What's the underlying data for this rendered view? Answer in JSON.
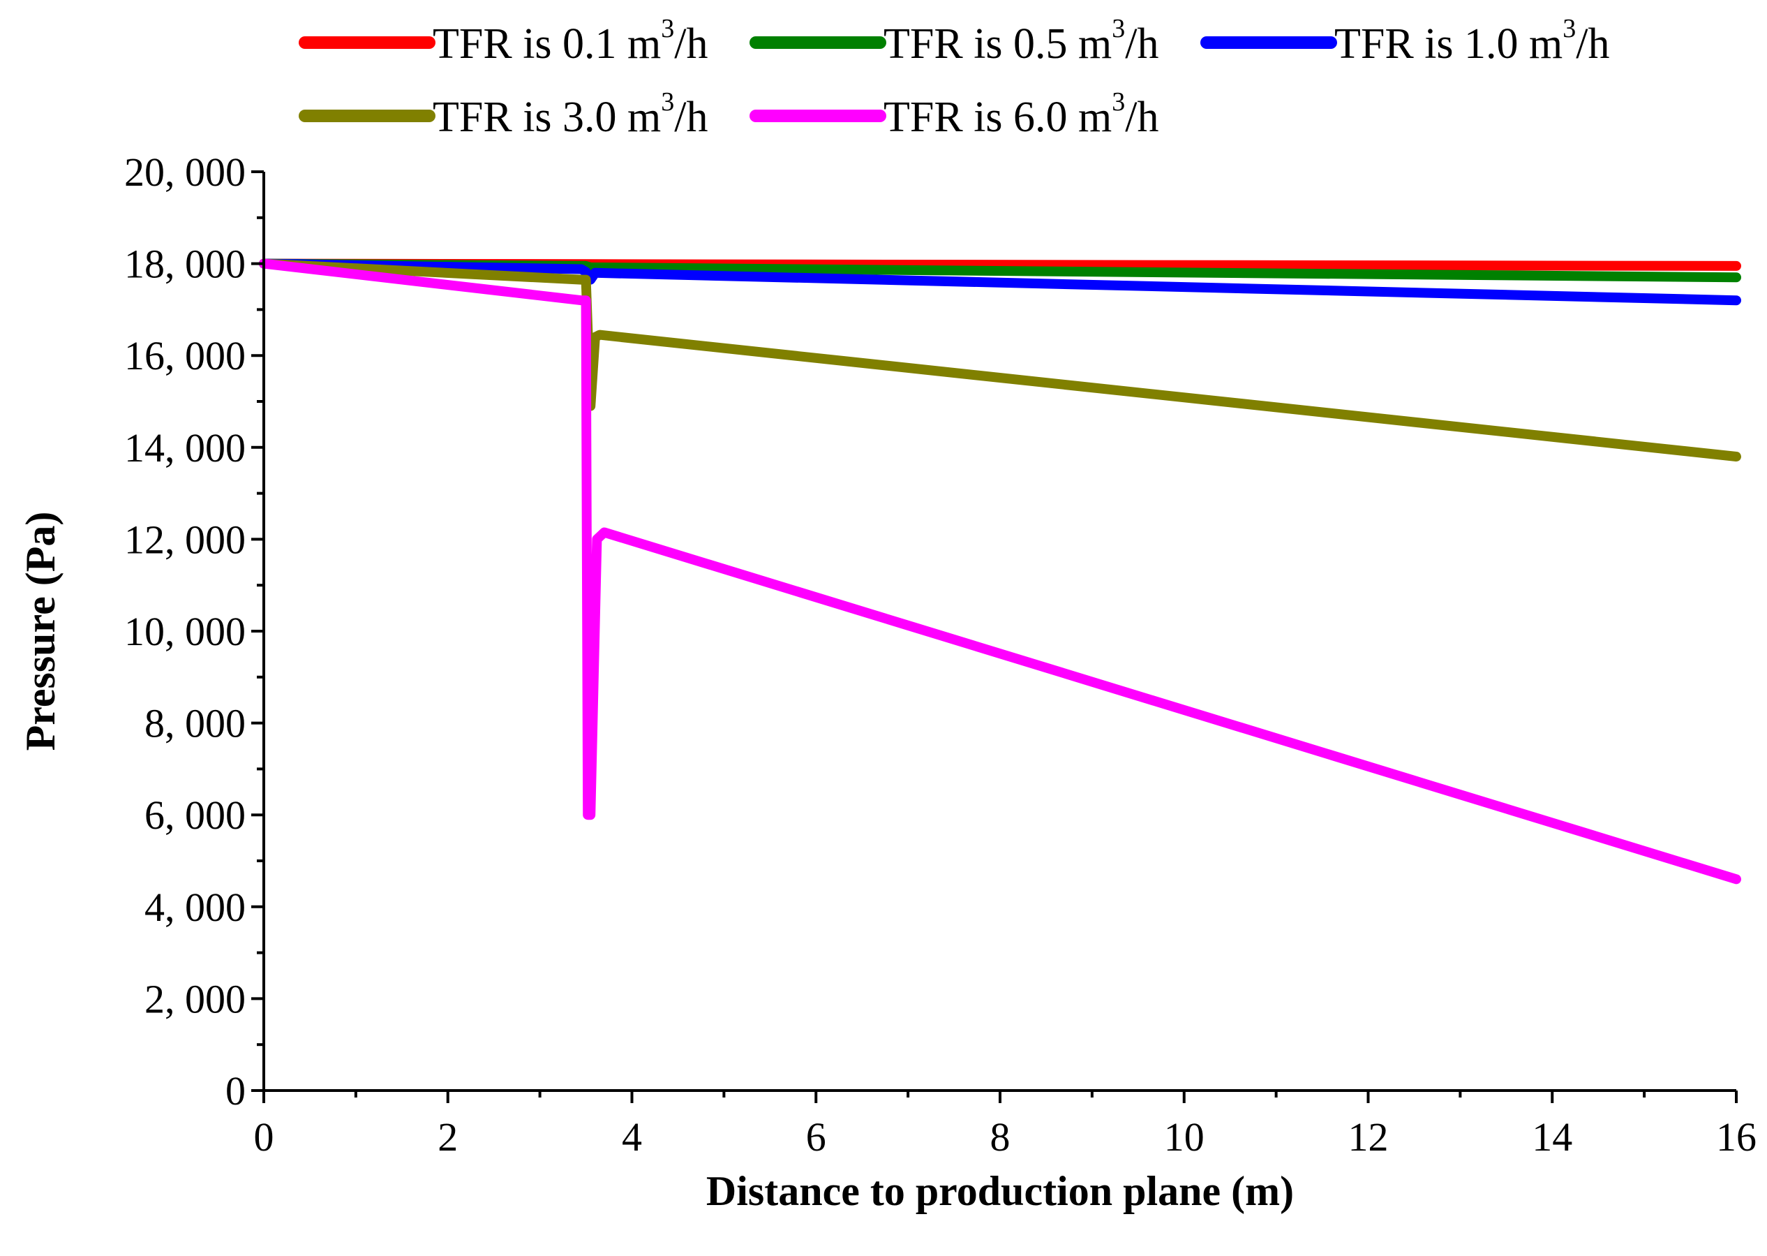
{
  "chart_data": {
    "type": "line",
    "title": "",
    "xlabel": "Distance to production plane (m)",
    "ylabel": "Pressure (Pa)",
    "xlim": [
      0,
      16
    ],
    "ylim": [
      0,
      20000
    ],
    "x_ticks": [
      0,
      2,
      4,
      6,
      8,
      10,
      12,
      14,
      16
    ],
    "x_tick_labels": [
      "0",
      "2",
      "4",
      "6",
      "8",
      "10",
      "12",
      "14",
      "16"
    ],
    "y_ticks": [
      0,
      2000,
      4000,
      6000,
      8000,
      10000,
      12000,
      14000,
      16000,
      18000,
      20000
    ],
    "y_tick_labels": [
      "0",
      "2, 000",
      "4, 000",
      "6, 000",
      "8, 000",
      "10, 000",
      "12, 000",
      "14, 000",
      "16, 000",
      "18, 000",
      "20, 000"
    ],
    "grid": false,
    "legend_position": "top",
    "series": [
      {
        "name": "TFR is 0.1 m3/h",
        "label_main": "TFR is 0.1 m",
        "label_sup": "3",
        "label_tail": "/h",
        "color": "#ff0000",
        "x": [
          0,
          3.5,
          3.55,
          16
        ],
        "y": [
          18000,
          17990,
          17990,
          17950
        ]
      },
      {
        "name": "TFR is 0.5 m3/h",
        "label_main": "TFR is 0.5 m",
        "label_sup": "3",
        "label_tail": "/h",
        "color": "#008000",
        "x": [
          0,
          3.5,
          3.55,
          16
        ],
        "y": [
          18000,
          17950,
          17920,
          17700
        ]
      },
      {
        "name": "TFR is 1.0 m3/h",
        "label_main": "TFR is 1.0 m",
        "label_sup": "3",
        "label_tail": "/h",
        "color": "#0000ff",
        "x": [
          0,
          3.45,
          3.5,
          3.55,
          3.6,
          16
        ],
        "y": [
          18000,
          17880,
          17820,
          17650,
          17800,
          17200
        ]
      },
      {
        "name": "TFR is 3.0 m3/h",
        "label_main": "TFR is 3.0 m",
        "label_sup": "3",
        "label_tail": "/h",
        "color": "#808000",
        "x": [
          0,
          3.45,
          3.5,
          3.55,
          3.6,
          3.65,
          16
        ],
        "y": [
          18000,
          17650,
          17650,
          14900,
          16400,
          16450,
          13800
        ]
      },
      {
        "name": "TFR is 6.0 m3/h",
        "label_main": "TFR is 6.0 m",
        "label_sup": "3",
        "label_tail": "/h",
        "color": "#ff00ff",
        "x": [
          0,
          3.45,
          3.5,
          3.52,
          3.55,
          3.62,
          3.7,
          16
        ],
        "y": [
          18000,
          17200,
          17200,
          6000,
          6000,
          12000,
          12150,
          4600
        ]
      }
    ]
  }
}
